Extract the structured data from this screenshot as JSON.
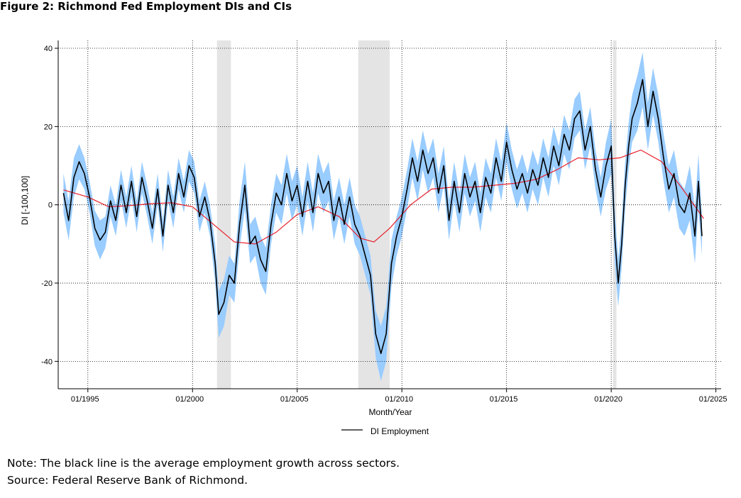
{
  "figure": {
    "title": "Figure 2: Richmond Fed Employment DIs and CIs",
    "note": "Note: The black line is the average employment growth across sectors.",
    "source": "Source: Federal Reserve Bank of Richmond."
  },
  "colors": {
    "line": "#000000",
    "trend": "#e8202a",
    "band": "#99ccff",
    "recession": "#e4e4e4",
    "grid": "#000000"
  },
  "chart_data": {
    "type": "line",
    "title": "",
    "xlabel": "Month/Year",
    "ylabel": "DI [-100,100]",
    "x_tick_labels": [
      "01/1995",
      "01/2000",
      "01/2005",
      "01/2010",
      "01/2015",
      "01/2020",
      "01/2025"
    ],
    "y_tick_labels": [
      "40",
      "20",
      "0",
      "-20",
      "-40"
    ],
    "ylim": [
      -47,
      42
    ],
    "xlim": [
      "1993-08",
      "2025-04"
    ],
    "grid": true,
    "legend": {
      "position": "bottom",
      "entries": [
        "DI Employment"
      ]
    },
    "recessions": [
      [
        "2001-03",
        "2001-11"
      ],
      [
        "2007-12",
        "2009-06"
      ],
      [
        "2020-02",
        "2020-04"
      ]
    ],
    "series": [
      {
        "name": "DI Employment",
        "points": [
          [
            "1993-11",
            3
          ],
          [
            "1994-02",
            -4
          ],
          [
            "1994-05",
            7
          ],
          [
            "1994-08",
            11
          ],
          [
            "1994-11",
            8
          ],
          [
            "1995-02",
            2
          ],
          [
            "1995-05",
            -6
          ],
          [
            "1995-08",
            -9
          ],
          [
            "1995-11",
            -7
          ],
          [
            "1996-02",
            1
          ],
          [
            "1996-05",
            -4
          ],
          [
            "1996-08",
            5
          ],
          [
            "1996-11",
            -2
          ],
          [
            "1997-02",
            6
          ],
          [
            "1997-05",
            -3
          ],
          [
            "1997-08",
            7
          ],
          [
            "1997-11",
            1
          ],
          [
            "1998-02",
            -6
          ],
          [
            "1998-05",
            4
          ],
          [
            "1998-08",
            -8
          ],
          [
            "1998-11",
            5
          ],
          [
            "1999-02",
            -2
          ],
          [
            "1999-05",
            8
          ],
          [
            "1999-08",
            2
          ],
          [
            "1999-11",
            10
          ],
          [
            "2000-02",
            7
          ],
          [
            "2000-05",
            -3
          ],
          [
            "2000-08",
            2
          ],
          [
            "2000-11",
            -4
          ],
          [
            "2001-02",
            -15
          ],
          [
            "2001-04",
            -28
          ],
          [
            "2001-07",
            -25
          ],
          [
            "2001-10",
            -18
          ],
          [
            "2002-01",
            -20
          ],
          [
            "2002-04",
            -5
          ],
          [
            "2002-07",
            5
          ],
          [
            "2002-10",
            -10
          ],
          [
            "2003-01",
            -8
          ],
          [
            "2003-04",
            -14
          ],
          [
            "2003-07",
            -17
          ],
          [
            "2003-10",
            -5
          ],
          [
            "2004-01",
            3
          ],
          [
            "2004-04",
            0
          ],
          [
            "2004-07",
            8
          ],
          [
            "2004-10",
            1
          ],
          [
            "2005-01",
            5
          ],
          [
            "2005-04",
            -3
          ],
          [
            "2005-07",
            6
          ],
          [
            "2005-10",
            -2
          ],
          [
            "2006-01",
            8
          ],
          [
            "2006-04",
            3
          ],
          [
            "2006-07",
            6
          ],
          [
            "2006-10",
            -4
          ],
          [
            "2007-01",
            2
          ],
          [
            "2007-04",
            -5
          ],
          [
            "2007-07",
            2
          ],
          [
            "2007-10",
            -5
          ],
          [
            "2008-01",
            -8
          ],
          [
            "2008-04",
            -13
          ],
          [
            "2008-07",
            -18
          ],
          [
            "2008-10",
            -33
          ],
          [
            "2009-01",
            -38
          ],
          [
            "2009-04",
            -33
          ],
          [
            "2009-07",
            -15
          ],
          [
            "2009-10",
            -8
          ],
          [
            "2010-01",
            -3
          ],
          [
            "2010-04",
            4
          ],
          [
            "2010-07",
            12
          ],
          [
            "2010-10",
            6
          ],
          [
            "2011-01",
            14
          ],
          [
            "2011-04",
            8
          ],
          [
            "2011-07",
            12
          ],
          [
            "2011-10",
            3
          ],
          [
            "2012-01",
            10
          ],
          [
            "2012-04",
            -4
          ],
          [
            "2012-07",
            6
          ],
          [
            "2012-10",
            -2
          ],
          [
            "2013-01",
            8
          ],
          [
            "2013-04",
            2
          ],
          [
            "2013-07",
            6
          ],
          [
            "2013-10",
            -2
          ],
          [
            "2014-01",
            7
          ],
          [
            "2014-04",
            3
          ],
          [
            "2014-07",
            12
          ],
          [
            "2014-10",
            6
          ],
          [
            "2015-01",
            16
          ],
          [
            "2015-04",
            9
          ],
          [
            "2015-07",
            4
          ],
          [
            "2015-10",
            8
          ],
          [
            "2016-01",
            3
          ],
          [
            "2016-04",
            9
          ],
          [
            "2016-07",
            5
          ],
          [
            "2016-10",
            12
          ],
          [
            "2017-01",
            7
          ],
          [
            "2017-04",
            15
          ],
          [
            "2017-07",
            10
          ],
          [
            "2017-10",
            18
          ],
          [
            "2018-01",
            14
          ],
          [
            "2018-04",
            22
          ],
          [
            "2018-07",
            24
          ],
          [
            "2018-10",
            14
          ],
          [
            "2019-01",
            20
          ],
          [
            "2019-04",
            9
          ],
          [
            "2019-07",
            2
          ],
          [
            "2019-10",
            10
          ],
          [
            "2020-01",
            15
          ],
          [
            "2020-03",
            -8
          ],
          [
            "2020-05",
            -20
          ],
          [
            "2020-07",
            -10
          ],
          [
            "2020-09",
            5
          ],
          [
            "2020-11",
            15
          ],
          [
            "2021-01",
            22
          ],
          [
            "2021-04",
            26
          ],
          [
            "2021-07",
            32
          ],
          [
            "2021-10",
            20
          ],
          [
            "2022-01",
            29
          ],
          [
            "2022-04",
            22
          ],
          [
            "2022-07",
            12
          ],
          [
            "2022-10",
            4
          ],
          [
            "2023-01",
            8
          ],
          [
            "2023-04",
            0
          ],
          [
            "2023-07",
            -2
          ],
          [
            "2023-10",
            3
          ],
          [
            "2024-01",
            -8
          ],
          [
            "2024-03",
            6
          ],
          [
            "2024-05",
            -8
          ]
        ]
      },
      {
        "name": "",
        "points": [
          [
            "1993-11",
            3.8
          ],
          [
            "1995-01",
            2.0
          ],
          [
            "1996-01",
            -0.5
          ],
          [
            "1997-01",
            -0.2
          ],
          [
            "1998-01",
            0.3
          ],
          [
            "1999-01",
            0.5
          ],
          [
            "2000-01",
            -0.5
          ],
          [
            "2001-01",
            -5
          ],
          [
            "2002-01",
            -9.5
          ],
          [
            "2003-01",
            -10
          ],
          [
            "2004-01",
            -7
          ],
          [
            "2005-01",
            -2.5
          ],
          [
            "2006-01",
            -0.5
          ],
          [
            "2007-01",
            -3
          ],
          [
            "2008-01",
            -8.5
          ],
          [
            "2008-09",
            -9.5
          ],
          [
            "2009-06",
            -6
          ],
          [
            "2010-06",
            0
          ],
          [
            "2011-06",
            4
          ],
          [
            "2012-06",
            4.5
          ],
          [
            "2013-06",
            4.5
          ],
          [
            "2014-06",
            5
          ],
          [
            "2015-06",
            5.5
          ],
          [
            "2016-06",
            6.5
          ],
          [
            "2017-06",
            9
          ],
          [
            "2018-06",
            12
          ],
          [
            "2019-06",
            11.5
          ],
          [
            "2020-06",
            12
          ],
          [
            "2021-06",
            14
          ],
          [
            "2022-06",
            11
          ],
          [
            "2023-06",
            4
          ],
          [
            "2024-06",
            -3.5
          ]
        ]
      }
    ],
    "confidence_band": {
      "half_width": [
        5,
        5,
        5,
        4.5,
        4,
        4,
        4.5,
        5,
        4,
        4,
        4,
        4,
        4,
        4,
        4,
        4,
        4,
        4,
        4,
        4,
        4,
        4,
        4,
        4,
        4,
        4,
        4,
        4,
        4,
        5,
        6,
        6,
        5,
        5,
        6,
        6,
        5,
        5,
        6,
        6,
        5,
        5,
        5,
        5,
        5,
        5,
        5,
        5,
        5,
        5,
        5,
        5,
        5,
        5,
        5,
        5,
        5,
        5,
        5,
        5,
        6,
        7,
        7,
        6,
        5,
        5,
        5,
        5,
        5,
        5,
        5,
        5,
        5,
        5,
        5,
        5,
        5,
        5,
        5,
        5,
        5,
        5,
        5,
        5,
        5,
        5,
        5,
        5,
        5,
        5,
        5,
        5,
        5,
        5,
        5,
        5,
        5,
        5,
        5,
        5,
        5,
        5,
        5,
        5,
        6,
        7,
        7,
        6,
        6,
        6,
        6,
        6,
        7,
        7,
        6,
        6,
        6,
        6,
        6,
        6,
        6,
        6,
        7,
        7,
        7
      ]
    }
  }
}
